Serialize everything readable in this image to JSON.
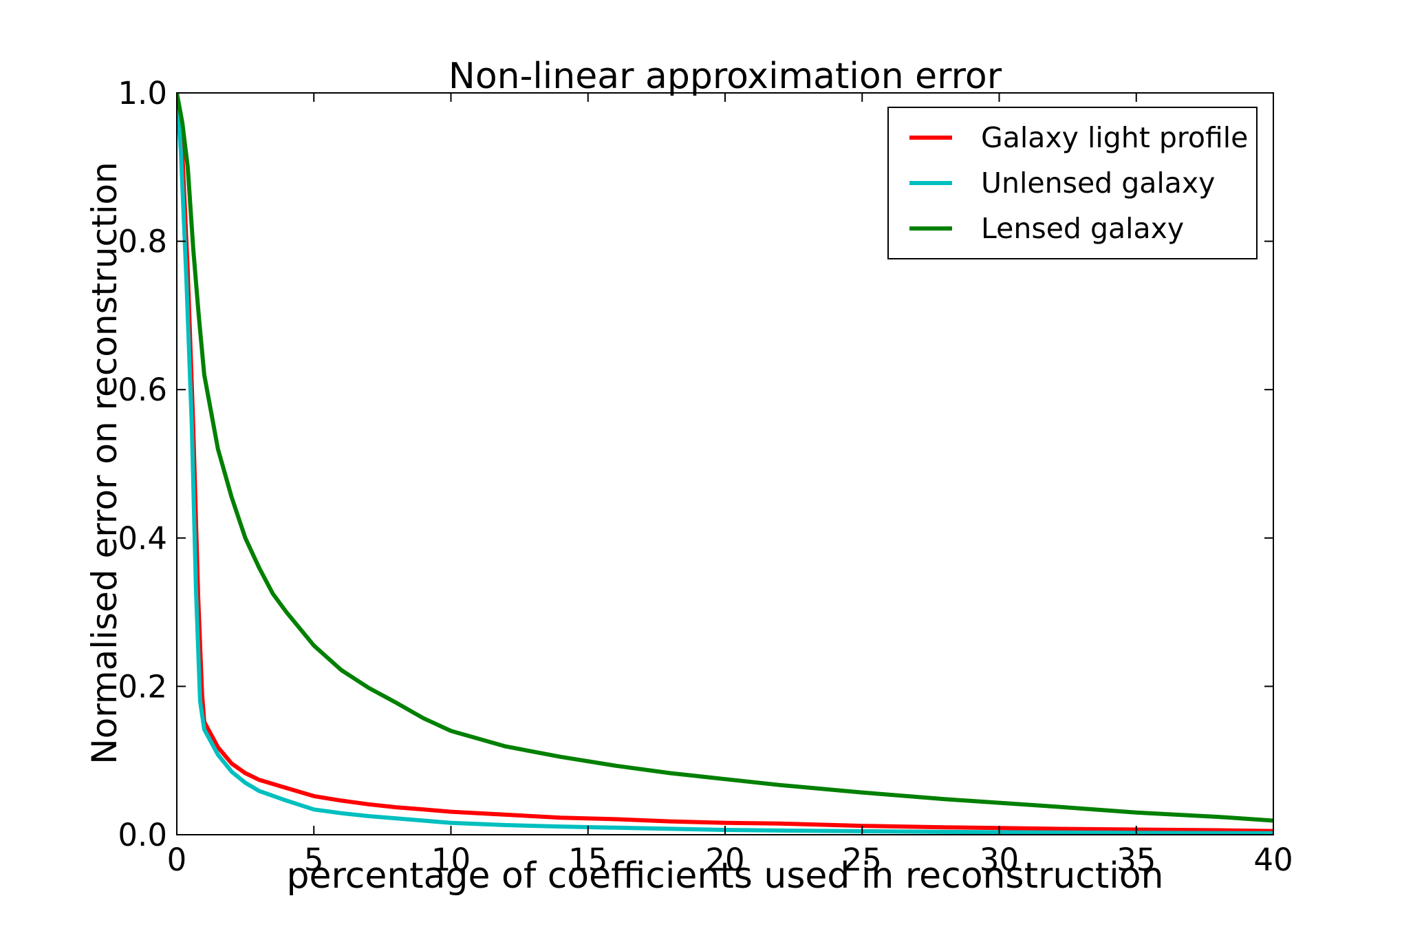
{
  "chart_data": {
    "type": "line",
    "title": "Non-linear approximation error",
    "xlabel": "percentage of coefficients used in reconstruction",
    "ylabel": "Normalised error on reconstruction",
    "xlim": [
      0,
      40
    ],
    "ylim": [
      0.0,
      1.0
    ],
    "xticks": [
      0,
      5,
      10,
      15,
      20,
      25,
      30,
      35,
      40
    ],
    "xtick_labels": [
      "0",
      "5",
      "10",
      "15",
      "20",
      "25",
      "30",
      "35",
      "40"
    ],
    "yticks": [
      0.0,
      0.2,
      0.4,
      0.6,
      0.8,
      1.0
    ],
    "ytick_labels": [
      "0.0",
      "0.2",
      "0.4",
      "0.6",
      "0.8",
      "1.0"
    ],
    "grid": false,
    "legend_position": "upper right",
    "tick_direction": "in",
    "series": [
      {
        "name": "Galaxy light profile",
        "color": "#ff0000",
        "x": [
          0,
          0.2,
          0.4,
          0.6,
          0.78,
          0.92,
          1,
          1.5,
          2,
          2.5,
          3,
          4,
          5,
          6,
          7,
          8,
          9,
          10,
          12,
          14,
          16,
          18,
          20,
          22,
          25,
          28,
          30,
          32,
          35,
          38,
          40
        ],
        "y": [
          1.0,
          0.92,
          0.76,
          0.55,
          0.32,
          0.19,
          0.152,
          0.118,
          0.096,
          0.083,
          0.074,
          0.063,
          0.052,
          0.046,
          0.041,
          0.037,
          0.034,
          0.031,
          0.027,
          0.023,
          0.021,
          0.018,
          0.016,
          0.015,
          0.012,
          0.01,
          0.009,
          0.008,
          0.007,
          0.006,
          0.005
        ]
      },
      {
        "name": "Unlensed galaxy",
        "color": "#00bfbf",
        "x": [
          0,
          0.15,
          0.35,
          0.55,
          0.7,
          0.85,
          1,
          1.5,
          2,
          2.5,
          3,
          4,
          5,
          6,
          7,
          8,
          9,
          10,
          12,
          14,
          16,
          18,
          20,
          22,
          25,
          28,
          30,
          32,
          35,
          38,
          40
        ],
        "y": [
          1.0,
          0.92,
          0.75,
          0.55,
          0.33,
          0.18,
          0.142,
          0.108,
          0.085,
          0.07,
          0.059,
          0.046,
          0.034,
          0.029,
          0.025,
          0.022,
          0.019,
          0.016,
          0.013,
          0.011,
          0.0095,
          0.008,
          0.0065,
          0.0057,
          0.0047,
          0.0038,
          0.0033,
          0.003,
          0.0026,
          0.0022,
          0.002
        ]
      },
      {
        "name": "Lensed galaxy",
        "color": "#008000",
        "x": [
          0,
          0.2,
          0.4,
          0.6,
          0.8,
          1,
          1.5,
          2,
          2.5,
          3,
          3.5,
          4,
          5,
          6,
          7,
          8,
          9,
          10,
          12,
          14,
          16,
          18,
          20,
          22,
          25,
          28,
          30,
          32,
          35,
          38,
          40
        ],
        "y": [
          1.0,
          0.96,
          0.9,
          0.79,
          0.7,
          0.62,
          0.52,
          0.455,
          0.4,
          0.36,
          0.325,
          0.3,
          0.255,
          0.222,
          0.198,
          0.178,
          0.157,
          0.14,
          0.119,
          0.105,
          0.093,
          0.083,
          0.075,
          0.067,
          0.057,
          0.048,
          0.043,
          0.038,
          0.03,
          0.024,
          0.019
        ]
      }
    ]
  },
  "style": {
    "background": "#ffffff",
    "axis_color": "#000000",
    "text_color": "#000000"
  }
}
